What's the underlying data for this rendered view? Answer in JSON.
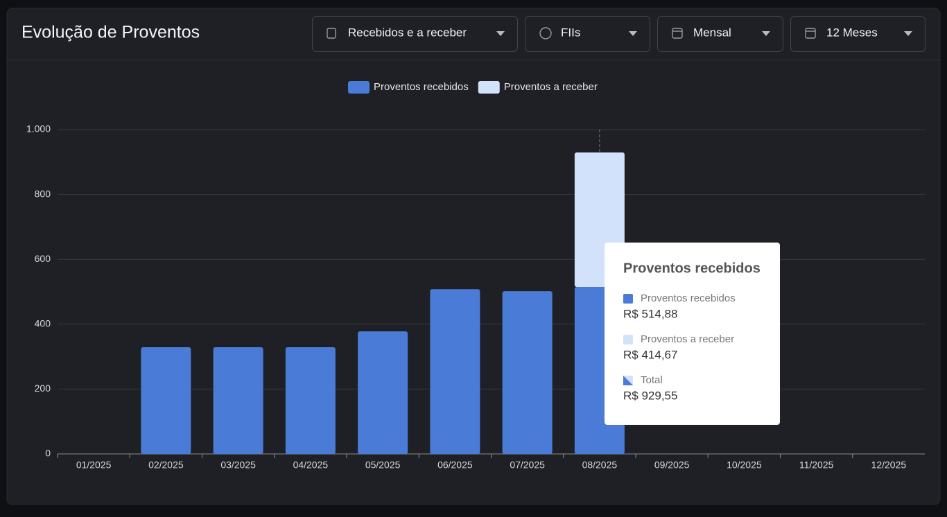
{
  "header": {
    "title": "Evolução de Proventos",
    "filters": [
      "Recebidos e a receber",
      "FIIs",
      "Mensal",
      "12 Meses"
    ]
  },
  "chart_data": {
    "type": "stacked-bar",
    "categories": [
      "01/2025",
      "02/2025",
      "03/2025",
      "04/2025",
      "05/2025",
      "06/2025",
      "07/2025",
      "08/2025",
      "09/2025",
      "10/2025",
      "11/2025",
      "12/2025"
    ],
    "series": [
      {
        "name": "Proventos recebidos",
        "color": "#4a7bd6",
        "values": [
          null,
          329,
          329,
          329,
          378,
          508,
          502,
          514.88,
          null,
          null,
          null,
          null
        ]
      },
      {
        "name": "Proventos a receber",
        "color": "#d3e2fb",
        "values": [
          null,
          null,
          null,
          null,
          null,
          null,
          null,
          414.67,
          null,
          null,
          null,
          null
        ]
      }
    ],
    "ylim": [
      0,
      1000
    ],
    "yticks": [
      0,
      200,
      400,
      600,
      800,
      {
        "value": 1000,
        "label": "1.000"
      }
    ],
    "grid": true,
    "legend": "top",
    "tooltip": {
      "title": "Proventos recebidos",
      "items": [
        {
          "name": "Proventos recebidos",
          "value": 514.88,
          "label": "R$ 514,88"
        },
        {
          "name": "Proventos a receber",
          "value": 414.67,
          "label": "R$ 414,67"
        },
        {
          "name": "Total",
          "value": 929.55,
          "label": "R$ 929,55"
        }
      ]
    }
  }
}
